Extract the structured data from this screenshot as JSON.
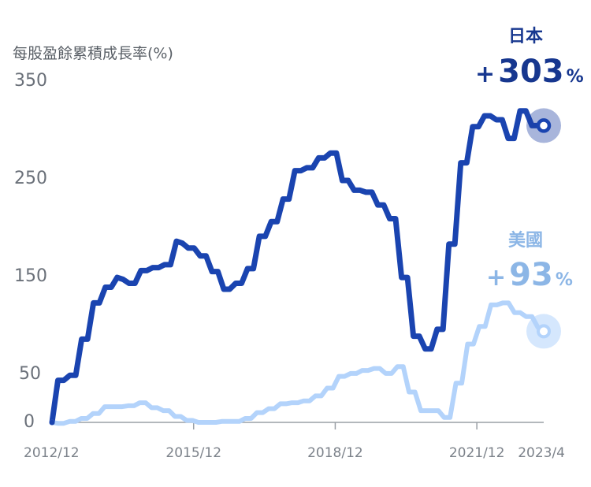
{
  "chart_data": {
    "type": "line",
    "ylabel": "每股盈餘累積成長率(%)",
    "yticks": [
      "0",
      "50",
      "150",
      "250",
      "350"
    ],
    "ylim": [
      -5,
      350
    ],
    "xlim": [
      0,
      125
    ],
    "xticks": [
      {
        "x": 0,
        "label": "2012/12"
      },
      {
        "x": 36,
        "label": "2015/12"
      },
      {
        "x": 72,
        "label": "2018/12"
      },
      {
        "x": 108,
        "label": "2021/12"
      },
      {
        "x": 124,
        "label": "2023/4"
      }
    ],
    "colors": {
      "japan": "#1a44b0",
      "us": "#b3d3fb",
      "japan_label": "#17378f",
      "us_label": "#8cb6e6",
      "axis": "#9aa0a6"
    },
    "series": [
      {
        "key": "japan",
        "name": "日本",
        "end_sign": "+",
        "end_value": "303",
        "end_unit": "%",
        "values": [
          0,
          43,
          43,
          48,
          48,
          85,
          85,
          122,
          122,
          138,
          138,
          148,
          146,
          142,
          142,
          155,
          155,
          158,
          158,
          161,
          161,
          185,
          183,
          178,
          178,
          170,
          170,
          154,
          154,
          136,
          136,
          142,
          142,
          157,
          157,
          190,
          190,
          205,
          205,
          228,
          228,
          257,
          257,
          260,
          260,
          270,
          270,
          275,
          275,
          247,
          247,
          237,
          237,
          235,
          235,
          222,
          222,
          208,
          208,
          148,
          148,
          88,
          88,
          75,
          75,
          95,
          95,
          182,
          182,
          265,
          265,
          302,
          302,
          313,
          313,
          309,
          309,
          290,
          290,
          318,
          318,
          303,
          303,
          303
        ]
      },
      {
        "key": "us",
        "name": "美國",
        "end_sign": "+",
        "end_value": "93",
        "end_unit": "%",
        "values": [
          0,
          -1,
          -1,
          1,
          1,
          4,
          4,
          9,
          9,
          16,
          16,
          16,
          16,
          17,
          17,
          20,
          20,
          15,
          15,
          12,
          12,
          6,
          6,
          2,
          2,
          0,
          0,
          0,
          0,
          1,
          1,
          1,
          1,
          4,
          4,
          10,
          10,
          14,
          14,
          19,
          19,
          20,
          20,
          22,
          22,
          27,
          27,
          35,
          35,
          47,
          47,
          50,
          50,
          53,
          53,
          55,
          55,
          50,
          50,
          57,
          57,
          31,
          31,
          12,
          12,
          12,
          12,
          5,
          5,
          40,
          40,
          80,
          80,
          98,
          98,
          120,
          120,
          122,
          122,
          112,
          112,
          108,
          108,
          97,
          93
        ]
      }
    ]
  }
}
